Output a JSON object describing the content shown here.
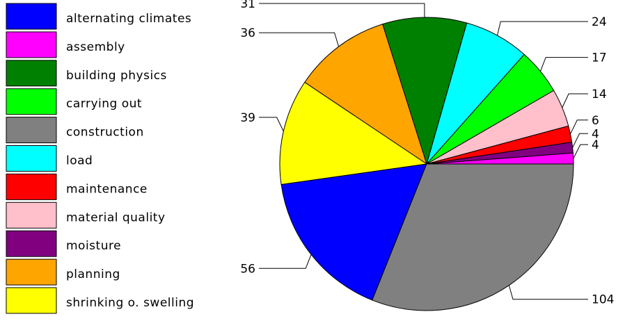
{
  "chart_data": {
    "type": "pie",
    "title": "",
    "legend_position": "left",
    "slices": [
      {
        "label": "assembly",
        "value": 4,
        "color": "#ff00ff"
      },
      {
        "label": "moisture",
        "value": 4,
        "color": "#800080"
      },
      {
        "label": "maintenance",
        "value": 6,
        "color": "#ff0000"
      },
      {
        "label": "material quality",
        "value": 14,
        "color": "#ffc0cb"
      },
      {
        "label": "carrying out",
        "value": 17,
        "color": "#00ff00"
      },
      {
        "label": "load",
        "value": 24,
        "color": "#00ffff"
      },
      {
        "label": "building physics",
        "value": 31,
        "color": "#008000"
      },
      {
        "label": "planning",
        "value": 36,
        "color": "#ffa500"
      },
      {
        "label": "shrinking o. swelling",
        "value": 39,
        "color": "#ffff00"
      },
      {
        "label": "alternating climates",
        "value": 56,
        "color": "#0000ff"
      },
      {
        "label": "construction",
        "value": 104,
        "color": "#808080"
      }
    ],
    "legend": [
      {
        "label": "alternating climates",
        "color": "#0000ff"
      },
      {
        "label": "assembly",
        "color": "#ff00ff"
      },
      {
        "label": "building physics",
        "color": "#008000"
      },
      {
        "label": "carrying out",
        "color": "#00ff00"
      },
      {
        "label": "construction",
        "color": "#808080"
      },
      {
        "label": "load",
        "color": "#00ffff"
      },
      {
        "label": "maintenance",
        "color": "#ff0000"
      },
      {
        "label": "material quality",
        "color": "#ffc0cb"
      },
      {
        "label": "moisture",
        "color": "#800080"
      },
      {
        "label": "planning",
        "color": "#ffa500"
      },
      {
        "label": "shrinking o. swelling",
        "color": "#ffff00"
      }
    ]
  }
}
